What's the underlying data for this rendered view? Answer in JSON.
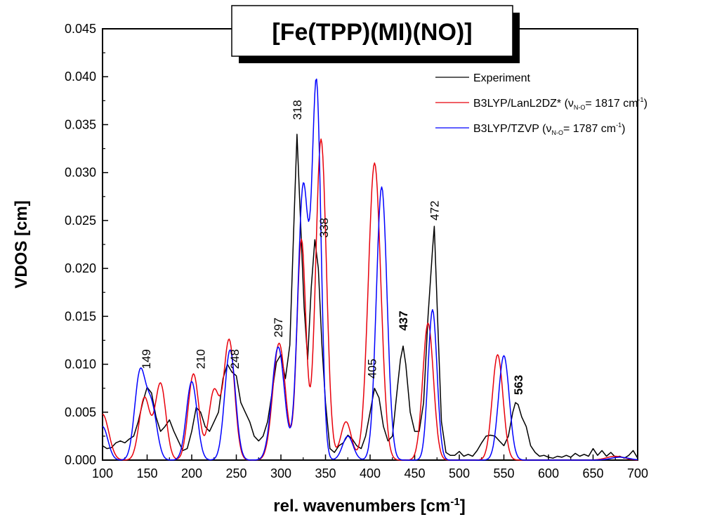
{
  "chart_data": {
    "type": "line",
    "title": "[Fe(TPP)(MI)(NO)]",
    "xlabel": "rel. wavenumbers [cm",
    "xlabel_sup": "-1",
    "xlabel_end": "]",
    "ylabel": "VDOS [cm]",
    "xlim": [
      100,
      700
    ],
    "ylim": [
      0,
      0.045
    ],
    "xticks": [
      100,
      150,
      200,
      250,
      300,
      350,
      400,
      450,
      500,
      550,
      600,
      650,
      700
    ],
    "yticks": [
      "0.000",
      "0.005",
      "0.010",
      "0.015",
      "0.020",
      "0.025",
      "0.030",
      "0.035",
      "0.040",
      "0.045"
    ],
    "grid": false,
    "legend_position": "top-right",
    "series": [
      {
        "name": "Experiment",
        "color": "#000000",
        "x": [
          100,
          105,
          110,
          115,
          120,
          125,
          130,
          135,
          140,
          145,
          150,
          155,
          160,
          165,
          170,
          175,
          180,
          185,
          190,
          195,
          200,
          205,
          210,
          215,
          220,
          225,
          230,
          235,
          240,
          245,
          250,
          255,
          260,
          265,
          270,
          275,
          280,
          285,
          290,
          295,
          300,
          305,
          310,
          315,
          318,
          322,
          326,
          330,
          334,
          338,
          342,
          346,
          350,
          355,
          360,
          365,
          370,
          375,
          380,
          385,
          390,
          395,
          400,
          405,
          410,
          415,
          420,
          425,
          430,
          434,
          437,
          440,
          445,
          450,
          455,
          460,
          465,
          470,
          472,
          476,
          480,
          485,
          490,
          495,
          500,
          505,
          510,
          515,
          520,
          525,
          530,
          535,
          540,
          545,
          550,
          555,
          560,
          563,
          566,
          570,
          575,
          580,
          585,
          590,
          595,
          600,
          605,
          610,
          615,
          620,
          625,
          630,
          635,
          640,
          645,
          650,
          655,
          660,
          665,
          670,
          675,
          680,
          685,
          690,
          695,
          700
        ],
        "y": [
          0.0015,
          0.0012,
          0.0013,
          0.0018,
          0.002,
          0.0018,
          0.0022,
          0.0025,
          0.004,
          0.006,
          0.0076,
          0.007,
          0.0045,
          0.003,
          0.0035,
          0.0042,
          0.003,
          0.002,
          0.001,
          0.0012,
          0.003,
          0.0055,
          0.005,
          0.0035,
          0.003,
          0.004,
          0.005,
          0.0085,
          0.01,
          0.0092,
          0.0088,
          0.006,
          0.005,
          0.004,
          0.0025,
          0.002,
          0.0025,
          0.004,
          0.007,
          0.0102,
          0.011,
          0.0085,
          0.012,
          0.026,
          0.034,
          0.025,
          0.016,
          0.0105,
          0.018,
          0.023,
          0.02,
          0.012,
          0.006,
          0.0012,
          0.0008,
          0.0015,
          0.0018,
          0.0026,
          0.0022,
          0.0015,
          0.0012,
          0.0025,
          0.005,
          0.0075,
          0.0065,
          0.0035,
          0.002,
          0.0025,
          0.007,
          0.0105,
          0.0119,
          0.01,
          0.005,
          0.003,
          0.003,
          0.006,
          0.015,
          0.022,
          0.0244,
          0.014,
          0.004,
          0.0008,
          0.0005,
          0.0005,
          0.0009,
          0.0004,
          0.0006,
          0.0004,
          0.001,
          0.0018,
          0.0025,
          0.0026,
          0.0025,
          0.002,
          0.0015,
          0.0025,
          0.005,
          0.006,
          0.0058,
          0.0045,
          0.0035,
          0.0015,
          0.0008,
          0.0004,
          0.0005,
          0.0003,
          0.0002,
          0.0004,
          0.0003,
          0.0005,
          0.0003,
          0.0007,
          0.0004,
          0.0006,
          0.0004,
          0.0012,
          0.0005,
          0.001,
          0.0004,
          0.0008,
          0.0003,
          0.0004,
          0.0002,
          0.0005,
          0.001,
          0.0002
        ]
      },
      {
        "name": "B3LYP/LanL2DZ* (ν",
        "color": "#e8000b",
        "peaks": [
          [
            100,
            0.0048,
            7
          ],
          [
            147,
            0.0065,
            6
          ],
          [
            165,
            0.008,
            6
          ],
          [
            202,
            0.009,
            6
          ],
          [
            225,
            0.0072,
            6
          ],
          [
            242,
            0.0125,
            6
          ],
          [
            298,
            0.0122,
            7
          ],
          [
            323,
            0.023,
            5
          ],
          [
            345,
            0.0335,
            6
          ],
          [
            373,
            0.004,
            6
          ],
          [
            405,
            0.031,
            7
          ],
          [
            465,
            0.0143,
            6
          ],
          [
            543,
            0.011,
            6
          ],
          [
            675,
            0.0004,
            10
          ]
        ]
      },
      {
        "name": "B3LYP/TZVP (ν",
        "color": "#0000ff",
        "peaks": [
          [
            100,
            0.0035,
            6
          ],
          [
            142,
            0.009,
            6
          ],
          [
            155,
            0.0055,
            6
          ],
          [
            200,
            0.0082,
            6
          ],
          [
            243,
            0.0115,
            6
          ],
          [
            297,
            0.0118,
            7
          ],
          [
            325,
            0.0285,
            6
          ],
          [
            340,
            0.0385,
            5
          ],
          [
            375,
            0.0025,
            6
          ],
          [
            413,
            0.0285,
            6
          ],
          [
            470,
            0.0157,
            5
          ],
          [
            550,
            0.0109,
            6
          ],
          [
            680,
            0.0003,
            10
          ]
        ]
      }
    ],
    "legend_subscript": "N-O",
    "legend_extra": [
      "= 1817 cm",
      "= 1787 cm"
    ],
    "legend_sup": "-1",
    "legend_close": ")",
    "annotations": [
      {
        "text": "149",
        "x": 149,
        "y": 0.0095,
        "bold": false
      },
      {
        "text": "210",
        "x": 210,
        "y": 0.0095,
        "bold": false
      },
      {
        "text": "248",
        "x": 248,
        "y": 0.0095,
        "bold": false
      },
      {
        "text": "297",
        "x": 297,
        "y": 0.0128,
        "bold": false
      },
      {
        "text": "318",
        "x": 318,
        "y": 0.0355,
        "bold": false
      },
      {
        "text": "338",
        "x": 348,
        "y": 0.0232,
        "bold": false
      },
      {
        "text": "405",
        "x": 402,
        "y": 0.0085,
        "bold": false
      },
      {
        "text": "437",
        "x": 437,
        "y": 0.0135,
        "bold": true
      },
      {
        "text": "472",
        "x": 472,
        "y": 0.025,
        "bold": false
      },
      {
        "text": "563",
        "x": 566,
        "y": 0.0068,
        "bold": true
      }
    ]
  }
}
